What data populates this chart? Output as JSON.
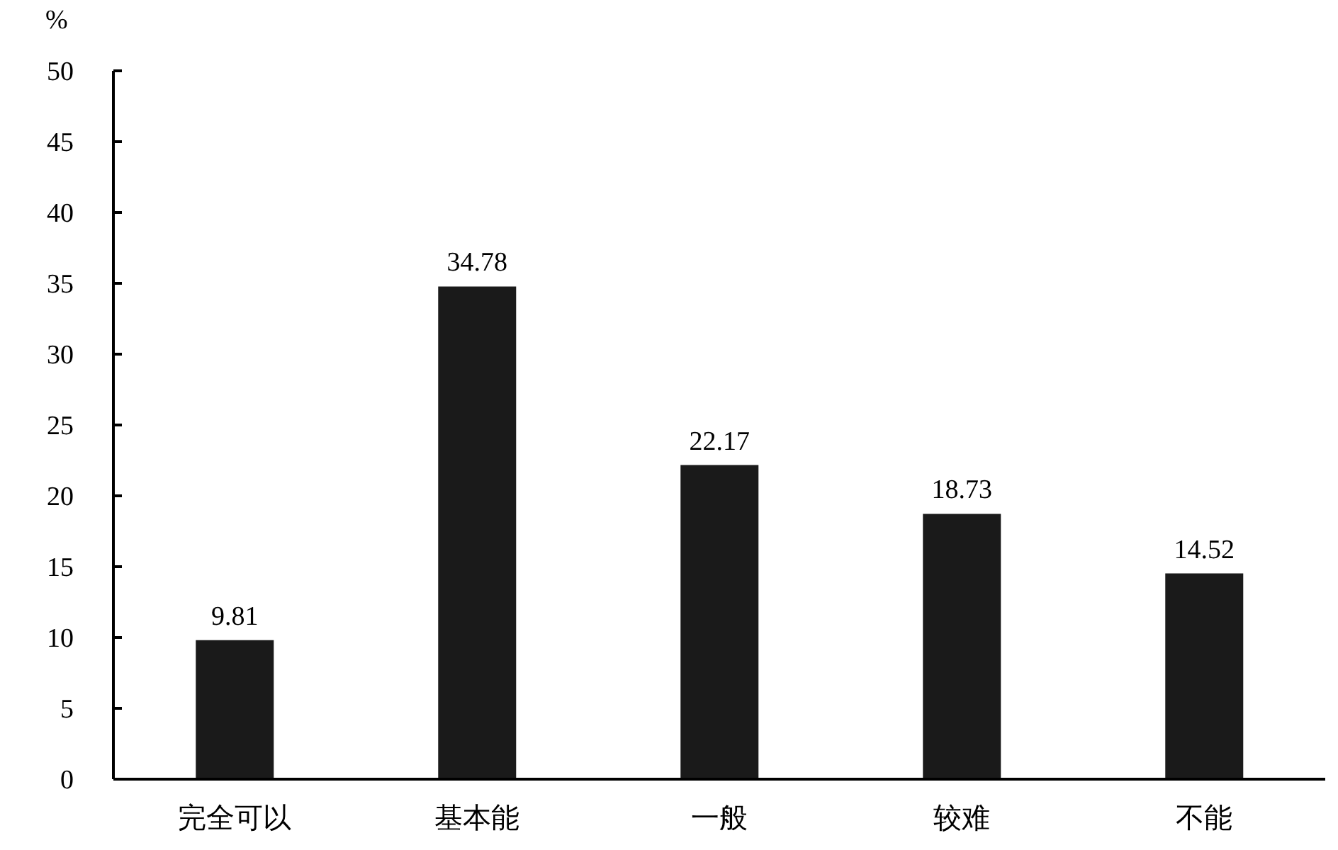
{
  "chart_data": {
    "type": "bar",
    "ylabel": "%",
    "categories": [
      "完全可以",
      "基本能",
      "一般",
      "较难",
      "不能"
    ],
    "values": [
      9.81,
      34.78,
      22.17,
      18.73,
      14.52
    ],
    "color": "#1a1a1a",
    "ylim": [
      0,
      50
    ],
    "yticks": [
      0,
      5,
      10,
      15,
      20,
      25,
      30,
      35,
      40,
      45,
      50
    ],
    "data_labels": true
  }
}
